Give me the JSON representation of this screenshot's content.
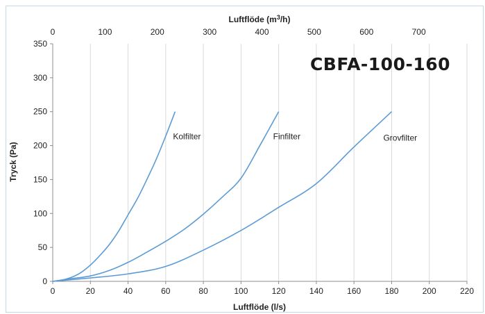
{
  "chart_data": {
    "type": "line",
    "title": "CBFA-100-160",
    "xlabel": "Luftflöde (l/s)",
    "x2label_prefix": "Luftflöde (m",
    "x2label_sup": "3",
    "x2label_suffix": "/h)",
    "ylabel": "Tryck (Pa)",
    "xlim": [
      0,
      220
    ],
    "ylim": [
      0,
      350
    ],
    "x_ticks": [
      0,
      20,
      40,
      60,
      80,
      100,
      120,
      140,
      160,
      180,
      200,
      220
    ],
    "y_ticks": [
      0,
      50,
      100,
      150,
      200,
      250,
      300,
      350
    ],
    "x2_ticks": [
      0,
      100,
      200,
      300,
      400,
      500,
      600,
      700
    ],
    "grid": "vertical",
    "color": "#5b9bd5",
    "series": [
      {
        "name": "Kolfilter",
        "x": [
          0,
          5,
          10,
          15,
          20,
          25,
          30,
          35,
          40,
          45,
          50,
          55,
          60,
          65
        ],
        "y": [
          0,
          2,
          6,
          13,
          24,
          38,
          54,
          74,
          98,
          122,
          150,
          180,
          214,
          250
        ]
      },
      {
        "name": "Finfilter",
        "x": [
          0,
          10,
          20,
          30,
          40,
          50,
          60,
          70,
          80,
          90,
          100,
          110,
          120
        ],
        "y": [
          0,
          4,
          8,
          16,
          28,
          43,
          59,
          77,
          99,
          124,
          152,
          200,
          250
        ]
      },
      {
        "name": "Grovfilter",
        "x": [
          0,
          20,
          40,
          60,
          80,
          100,
          120,
          140,
          160,
          180
        ],
        "y": [
          0,
          5,
          11,
          22,
          46,
          75,
          109,
          144,
          198,
          250
        ]
      }
    ]
  }
}
